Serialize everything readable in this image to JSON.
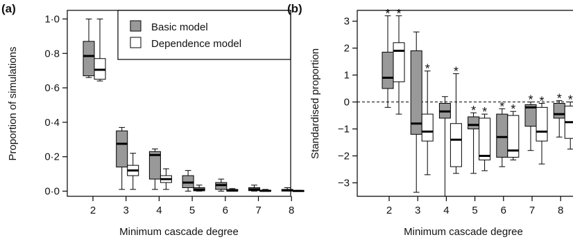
{
  "chart_data": [
    {
      "type": "boxplot",
      "panel_label": "(a)",
      "xlabel": "Minimum cascade degree",
      "ylabel": "Proportion of simulations",
      "categories": [
        "2",
        "3",
        "4",
        "5",
        "6",
        "7",
        "8"
      ],
      "ylim": [
        -0.03,
        1.05
      ],
      "yticks": [
        0.0,
        0.2,
        0.4,
        0.6,
        0.8,
        1.0
      ],
      "ytick_labels": [
        "0·0",
        "0·2",
        "0·4",
        "0·6",
        "0·8",
        "1·0"
      ],
      "legend": {
        "placement": "top-right",
        "entries": [
          "Basic model",
          "Dependence model"
        ]
      },
      "series": [
        {
          "name": "Basic model",
          "color": "#999999",
          "boxes": [
            {
              "whislo": 0.66,
              "q1": 0.67,
              "med": 0.785,
              "q3": 0.87,
              "whishi": 1.0
            },
            {
              "whislo": 0.01,
              "q1": 0.14,
              "med": 0.275,
              "q3": 0.35,
              "whishi": 0.37
            },
            {
              "whislo": 0.01,
              "q1": 0.07,
              "med": 0.21,
              "q3": 0.23,
              "whishi": 0.245
            },
            {
              "whislo": 0.0,
              "q1": 0.02,
              "med": 0.05,
              "q3": 0.09,
              "whishi": 0.12
            },
            {
              "whislo": 0.0,
              "q1": 0.01,
              "med": 0.035,
              "q3": 0.05,
              "whishi": 0.07
            },
            {
              "whislo": 0.0,
              "q1": 0.003,
              "med": 0.01,
              "q3": 0.02,
              "whishi": 0.035
            },
            {
              "whislo": 0.0,
              "q1": 0.0,
              "med": 0.005,
              "q3": 0.01,
              "whishi": 0.02
            }
          ]
        },
        {
          "name": "Dependence model",
          "color": "#ffffff",
          "boxes": [
            {
              "whislo": 0.64,
              "q1": 0.65,
              "med": 0.705,
              "q3": 0.77,
              "whishi": 1.0
            },
            {
              "whislo": 0.01,
              "q1": 0.09,
              "med": 0.12,
              "q3": 0.15,
              "whishi": 0.22
            },
            {
              "whislo": 0.01,
              "q1": 0.05,
              "med": 0.07,
              "q3": 0.09,
              "whishi": 0.13
            },
            {
              "whislo": 0.0,
              "q1": 0.002,
              "med": 0.01,
              "q3": 0.02,
              "whishi": 0.035
            },
            {
              "whislo": 0.0,
              "q1": 0.0,
              "med": 0.003,
              "q3": 0.01,
              "whishi": 0.015
            },
            {
              "whislo": 0.0,
              "q1": 0.0,
              "med": 0.002,
              "q3": 0.005,
              "whishi": 0.01
            },
            {
              "whislo": 0.0,
              "q1": 0.0,
              "med": 0.001,
              "q3": 0.003,
              "whishi": 0.005
            }
          ]
        }
      ]
    },
    {
      "type": "boxplot",
      "panel_label": "(b)",
      "xlabel": "Minimum cascade degree",
      "ylabel": "Standardised proportion",
      "categories": [
        "2",
        "3",
        "4",
        "5",
        "6",
        "7",
        "8"
      ],
      "ylim": [
        -3.5,
        3.4
      ],
      "yticks": [
        -3,
        -2,
        -1,
        0,
        1,
        2,
        3
      ],
      "ytick_labels": [
        "−3",
        "−2",
        "−1",
        "0",
        "1",
        "2",
        "3"
      ],
      "reference_line": 0,
      "significance_marker": "*",
      "series": [
        {
          "name": "Basic model",
          "color": "#999999",
          "boxes": [
            {
              "whislo": -0.2,
              "q1": 0.5,
              "med": 0.9,
              "q3": 1.85,
              "whishi": 3.2,
              "significant": true
            },
            {
              "whislo": -3.35,
              "q1": -1.2,
              "med": -0.8,
              "q3": 1.9,
              "whishi": 2.6,
              "significant": false
            },
            {
              "whislo": -3.5,
              "q1": -0.6,
              "med": -0.35,
              "q3": -0.05,
              "whishi": 0.2,
              "significant": false
            },
            {
              "whislo": -2.65,
              "q1": -1.0,
              "med": -0.85,
              "q3": -0.55,
              "whishi": -0.4,
              "significant": true
            },
            {
              "whislo": -2.4,
              "q1": -2.05,
              "med": -1.3,
              "q3": -0.45,
              "whishi": -0.25,
              "significant": true
            },
            {
              "whislo": -1.8,
              "q1": -0.9,
              "med": -0.2,
              "q3": -0.1,
              "whishi": 0.0,
              "significant": true
            },
            {
              "whislo": -1.3,
              "q1": -0.6,
              "med": -0.45,
              "q3": -0.05,
              "whishi": 0.05,
              "significant": true
            }
          ]
        },
        {
          "name": "Dependence model",
          "color": "#ffffff",
          "boxes": [
            {
              "whislo": -0.45,
              "q1": 0.75,
              "med": 1.9,
              "q3": 2.2,
              "whishi": 3.2,
              "significant": true
            },
            {
              "whislo": -2.7,
              "q1": -1.45,
              "med": -1.1,
              "q3": -0.45,
              "whishi": 1.15,
              "significant": true
            },
            {
              "whislo": -2.65,
              "q1": -2.4,
              "med": -1.4,
              "q3": -0.8,
              "whishi": 1.05,
              "significant": true
            },
            {
              "whislo": -2.55,
              "q1": -2.15,
              "med": -2.0,
              "q3": -0.6,
              "whishi": -0.45,
              "significant": true
            },
            {
              "whislo": -2.15,
              "q1": -2.05,
              "med": -1.8,
              "q3": -0.5,
              "whishi": -0.35,
              "significant": true
            },
            {
              "whislo": -2.3,
              "q1": -1.45,
              "med": -1.1,
              "q3": -0.2,
              "whishi": -0.05,
              "significant": true
            },
            {
              "whislo": -1.75,
              "q1": -1.35,
              "med": -0.75,
              "q3": -0.15,
              "whishi": 0.0,
              "significant": true
            }
          ]
        }
      ]
    }
  ]
}
